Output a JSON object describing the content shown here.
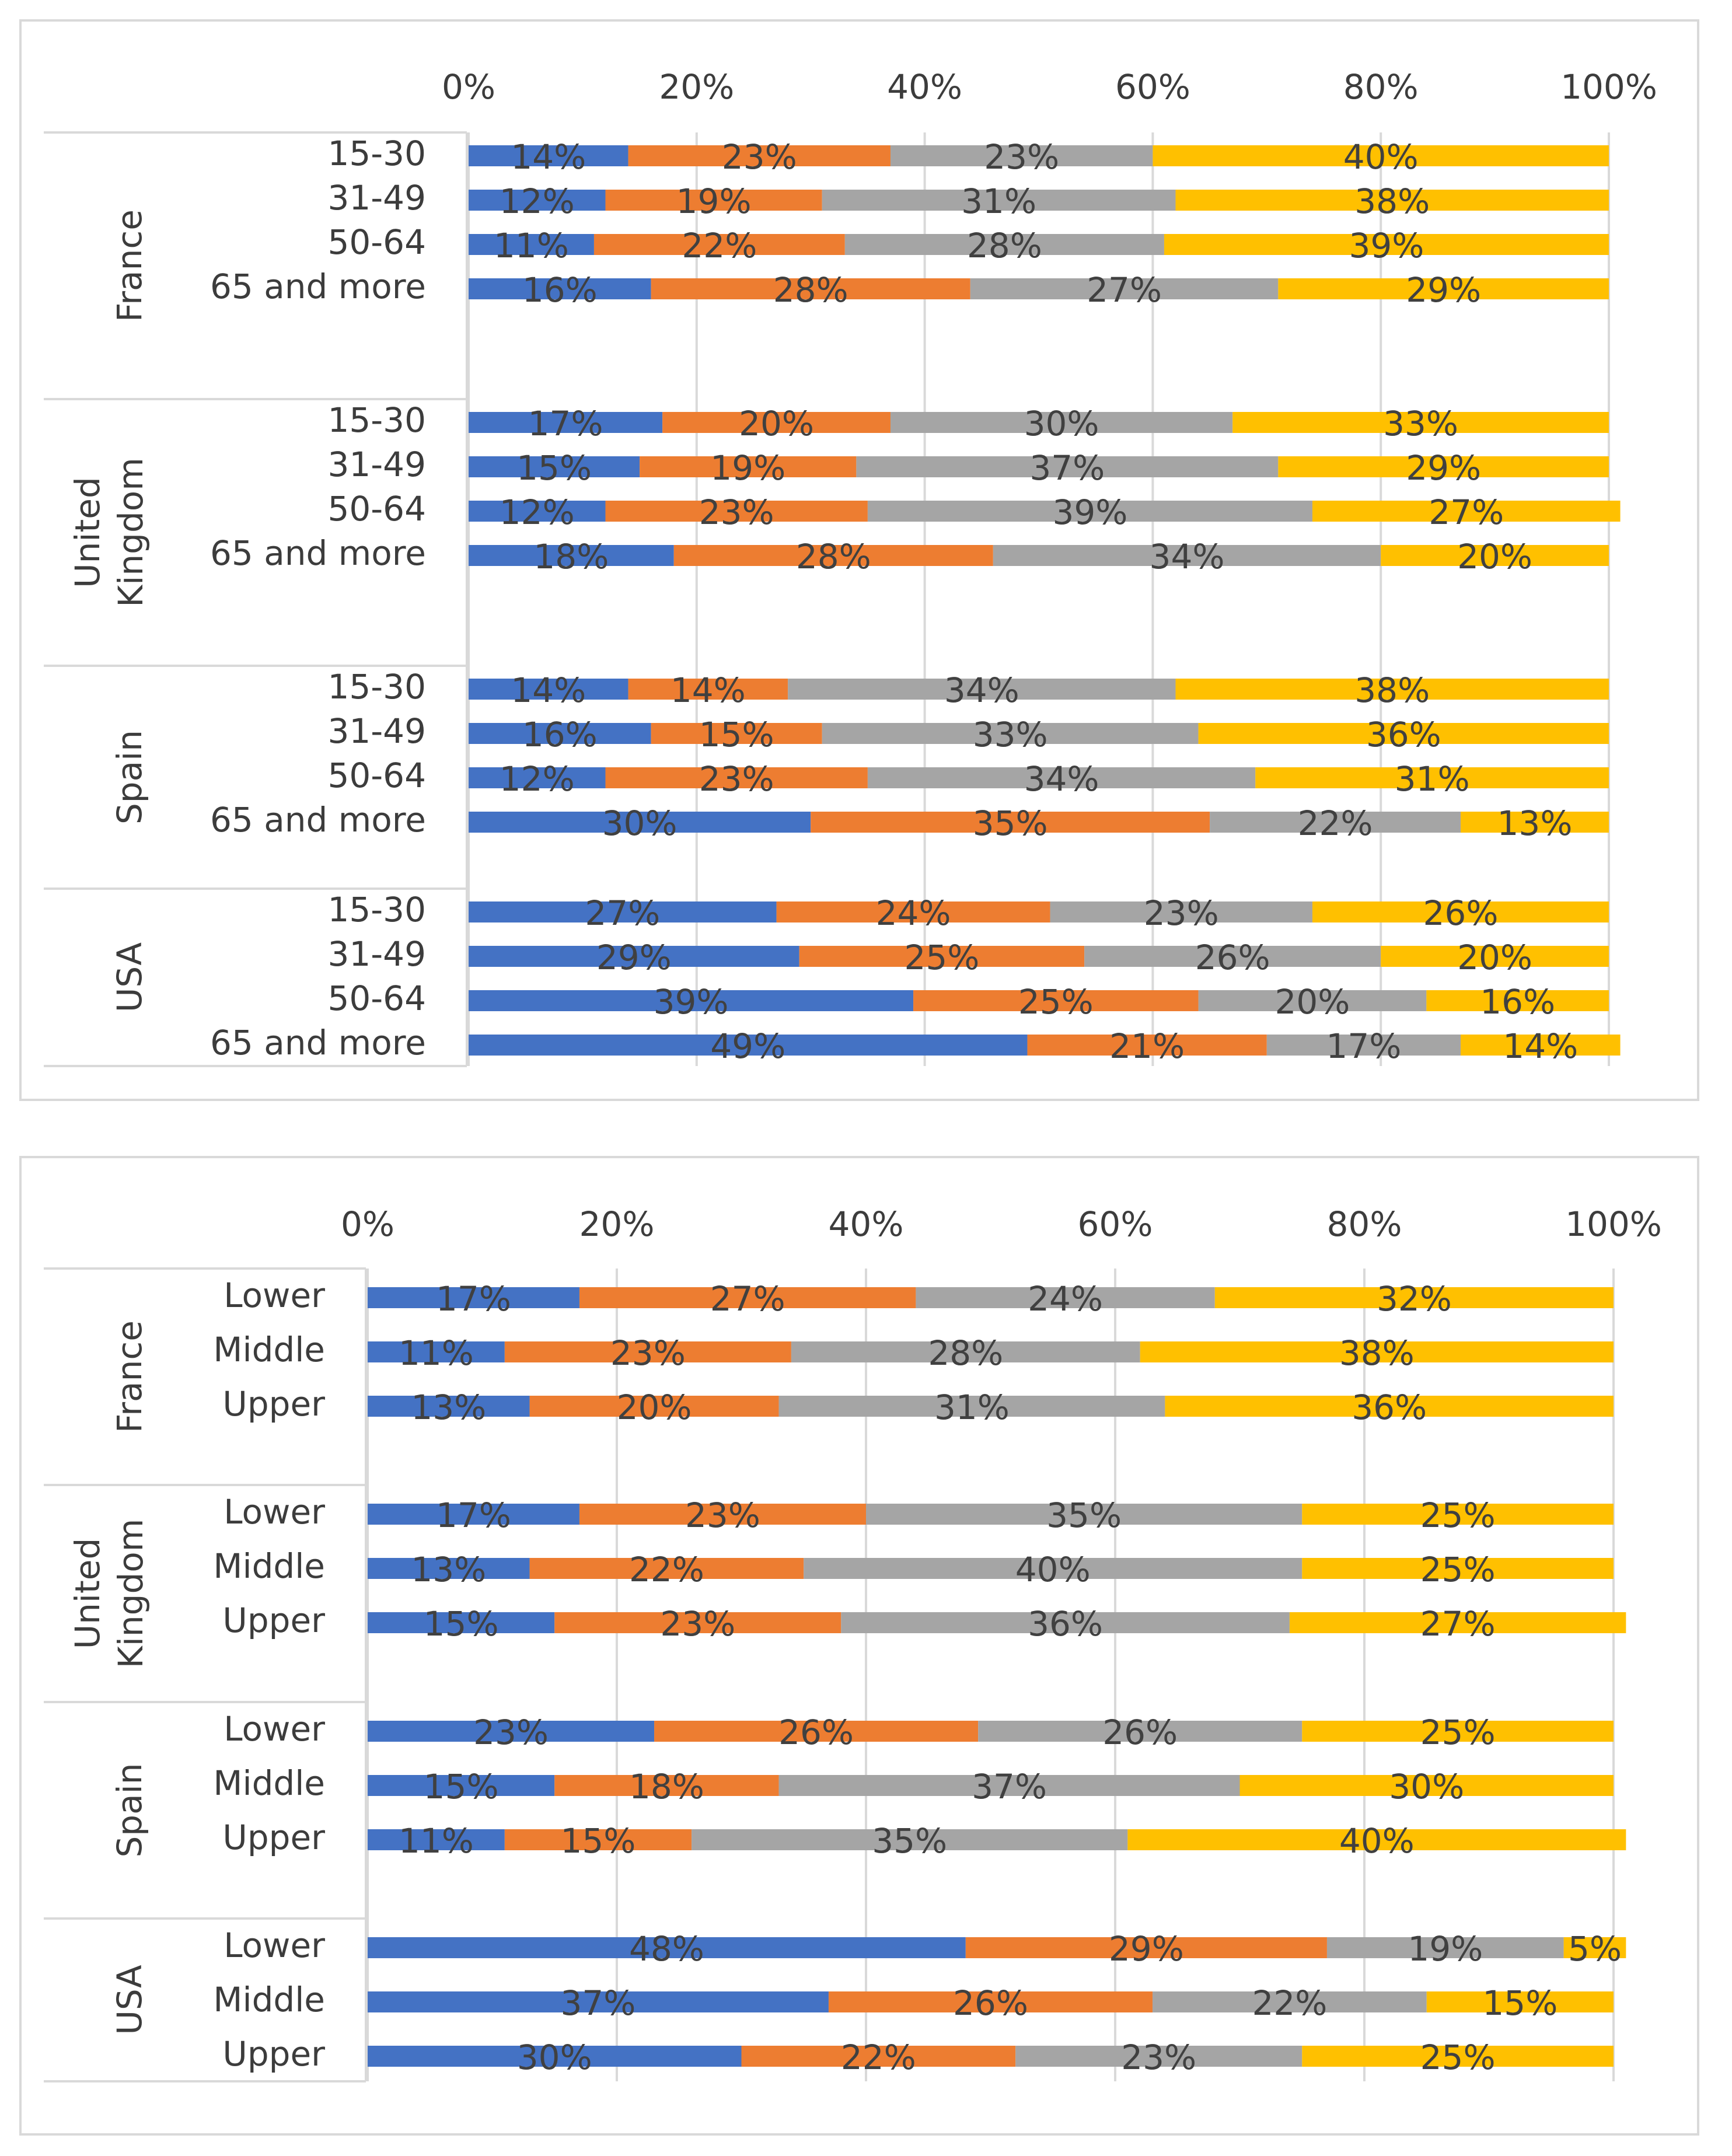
{
  "colors": [
    "#4472C4",
    "#ED7D31",
    "#A5A5A5",
    "#FFC000"
  ],
  "chart_data": [
    {
      "type": "bar",
      "orientation": "horizontal",
      "stacked": "percent",
      "title": "",
      "xlim": [
        0,
        100
      ],
      "xticks": [
        "0%",
        "20%",
        "40%",
        "60%",
        "80%",
        "100%"
      ],
      "grid": true,
      "groups": [
        {
          "name": [
            "France"
          ],
          "categories": [
            "15-30",
            "31-49",
            "50-64",
            "65 and more"
          ],
          "values": [
            [
              14,
              23,
              23,
              40
            ],
            [
              12,
              19,
              31,
              38
            ],
            [
              11,
              22,
              28,
              39
            ],
            [
              16,
              28,
              27,
              29
            ]
          ]
        },
        {
          "name": [
            "United",
            "Kingdom"
          ],
          "categories": [
            "15-30",
            "31-49",
            "50-64",
            "65 and more"
          ],
          "values": [
            [
              17,
              20,
              30,
              33
            ],
            [
              15,
              19,
              37,
              29
            ],
            [
              12,
              23,
              39,
              27
            ],
            [
              18,
              28,
              34,
              20
            ]
          ]
        },
        {
          "name": [
            "Spain"
          ],
          "categories": [
            "15-30",
            "31-49",
            "50-64",
            "65 and more"
          ],
          "values": [
            [
              14,
              14,
              34,
              38
            ],
            [
              16,
              15,
              33,
              36
            ],
            [
              12,
              23,
              34,
              31
            ],
            [
              30,
              35,
              22,
              13
            ]
          ]
        },
        {
          "name": [
            "USA"
          ],
          "categories": [
            "15-30",
            "31-49",
            "50-64",
            "65 and more"
          ],
          "values": [
            [
              27,
              24,
              23,
              26
            ],
            [
              29,
              25,
              26,
              20
            ],
            [
              39,
              25,
              20,
              16
            ],
            [
              49,
              21,
              17,
              14
            ]
          ]
        }
      ]
    },
    {
      "type": "bar",
      "orientation": "horizontal",
      "stacked": "percent",
      "title": "",
      "xlim": [
        0,
        100
      ],
      "xticks": [
        "0%",
        "20%",
        "40%",
        "60%",
        "80%",
        "100%"
      ],
      "grid": true,
      "groups": [
        {
          "name": [
            "France"
          ],
          "categories": [
            "Lower",
            "Middle",
            "Upper"
          ],
          "values": [
            [
              17,
              27,
              24,
              32
            ],
            [
              11,
              23,
              28,
              38
            ],
            [
              13,
              20,
              31,
              36
            ]
          ]
        },
        {
          "name": [
            "United",
            "Kingdom"
          ],
          "categories": [
            "Lower",
            "Middle",
            "Upper"
          ],
          "values": [
            [
              17,
              23,
              35,
              25
            ],
            [
              13,
              22,
              40,
              25
            ],
            [
              15,
              23,
              36,
              27
            ]
          ]
        },
        {
          "name": [
            "Spain"
          ],
          "categories": [
            "Lower",
            "Middle",
            "Upper"
          ],
          "values": [
            [
              23,
              26,
              26,
              25
            ],
            [
              15,
              18,
              37,
              30
            ],
            [
              11,
              15,
              35,
              40
            ]
          ]
        },
        {
          "name": [
            "USA"
          ],
          "categories": [
            "Lower",
            "Middle",
            "Upper"
          ],
          "values": [
            [
              48,
              29,
              19,
              5
            ],
            [
              37,
              26,
              22,
              15
            ],
            [
              30,
              22,
              23,
              25
            ]
          ]
        }
      ]
    }
  ]
}
